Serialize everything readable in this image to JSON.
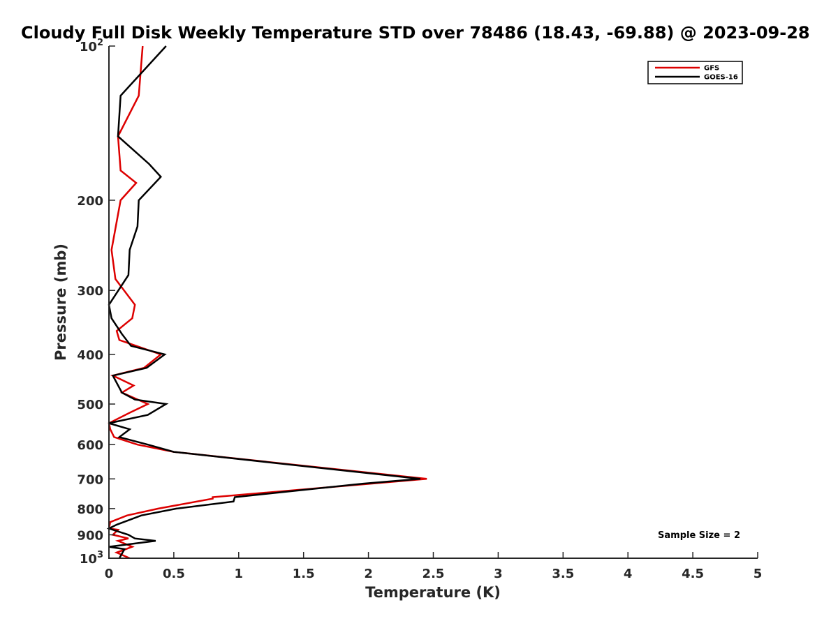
{
  "chart_data": {
    "type": "line",
    "title": "Cloudy Full Disk Weekly Temperature STD over 78486 (18.43, -69.88) @ 2023-09-28",
    "xlabel": "Temperature (K)",
    "ylabel": "Pressure (mb)",
    "xlim": [
      0,
      5
    ],
    "ylim": [
      100,
      1000
    ],
    "y_scale": "log",
    "y_reversed": true,
    "x_ticks": [
      0,
      0.5,
      1,
      1.5,
      2,
      2.5,
      3,
      3.5,
      4,
      4.5,
      5
    ],
    "x_tick_labels": [
      "0",
      "0.5",
      "1",
      "1.5",
      "2",
      "2.5",
      "3",
      "3.5",
      "4",
      "4.5",
      "5"
    ],
    "y_ticks": [
      {
        "value": 100,
        "base": "10",
        "exp": "2"
      },
      {
        "value": 200,
        "label": "200"
      },
      {
        "value": 300,
        "label": "300"
      },
      {
        "value": 400,
        "label": "400"
      },
      {
        "value": 500,
        "label": "500"
      },
      {
        "value": 600,
        "label": "600"
      },
      {
        "value": 700,
        "label": "700"
      },
      {
        "value": 800,
        "label": "800"
      },
      {
        "value": 900,
        "label": "900"
      },
      {
        "value": 1000,
        "base": "10",
        "exp": "3"
      }
    ],
    "legend_position": "top-right",
    "annotation": "Sample Size = 2",
    "series": [
      {
        "name": "GFS",
        "color": "#dd0000",
        "points": [
          [
            0.26,
            100
          ],
          [
            0.23,
            125
          ],
          [
            0.07,
            150
          ],
          [
            0.09,
            175
          ],
          [
            0.21,
            185
          ],
          [
            0.09,
            200
          ],
          [
            0.02,
            250
          ],
          [
            0.05,
            285
          ],
          [
            0.2,
            320
          ],
          [
            0.18,
            340
          ],
          [
            0.06,
            360
          ],
          [
            0.08,
            375
          ],
          [
            0.4,
            400
          ],
          [
            0.27,
            425
          ],
          [
            0.03,
            440
          ],
          [
            0.19,
            460
          ],
          [
            0.1,
            475
          ],
          [
            0.3,
            500
          ],
          [
            0.16,
            520
          ],
          [
            0.0,
            545
          ],
          [
            0.01,
            560
          ],
          [
            0.04,
            580
          ],
          [
            0.22,
            600
          ],
          [
            0.5,
            620
          ],
          [
            2.45,
            700
          ],
          [
            0.8,
            760
          ],
          [
            0.8,
            765
          ],
          [
            0.38,
            800
          ],
          [
            0.14,
            825
          ],
          [
            0.01,
            850
          ],
          [
            0.0,
            875
          ],
          [
            0.07,
            880
          ],
          [
            0.03,
            900
          ],
          [
            0.15,
            915
          ],
          [
            0.07,
            925
          ],
          [
            0.18,
            950
          ],
          [
            0.06,
            975
          ],
          [
            0.16,
            1000
          ]
        ]
      },
      {
        "name": "GOES-16",
        "color": "#000000",
        "points": [
          [
            0.44,
            100
          ],
          [
            0.09,
            125
          ],
          [
            0.07,
            150
          ],
          [
            0.31,
            170
          ],
          [
            0.4,
            180
          ],
          [
            0.23,
            200
          ],
          [
            0.22,
            225
          ],
          [
            0.16,
            250
          ],
          [
            0.15,
            280
          ],
          [
            0.0,
            320
          ],
          [
            0.02,
            340
          ],
          [
            0.1,
            365
          ],
          [
            0.17,
            385
          ],
          [
            0.43,
            400
          ],
          [
            0.29,
            425
          ],
          [
            0.03,
            440
          ],
          [
            0.1,
            475
          ],
          [
            0.2,
            490
          ],
          [
            0.44,
            500
          ],
          [
            0.3,
            525
          ],
          [
            0.0,
            545
          ],
          [
            0.16,
            560
          ],
          [
            0.08,
            580
          ],
          [
            0.3,
            600
          ],
          [
            0.5,
            620
          ],
          [
            2.4,
            700
          ],
          [
            1.96,
            715
          ],
          [
            0.97,
            760
          ],
          [
            0.96,
            775
          ],
          [
            0.52,
            800
          ],
          [
            0.25,
            825
          ],
          [
            0.06,
            860
          ],
          [
            0.0,
            875
          ],
          [
            0.15,
            900
          ],
          [
            0.2,
            915
          ],
          [
            0.36,
            925
          ],
          [
            0.0,
            950
          ],
          [
            0.12,
            960
          ],
          [
            0.08,
            1000
          ]
        ]
      }
    ]
  }
}
